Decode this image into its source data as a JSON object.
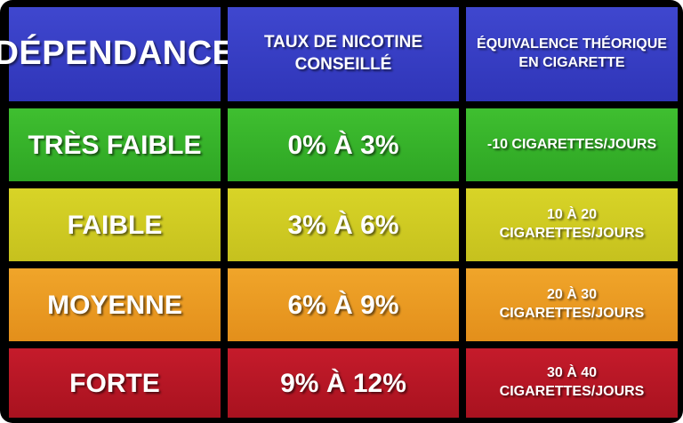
{
  "table": {
    "headers": {
      "dependance": "DÉPENDANCE",
      "taux_line1": "TAUX DE NICOTINE",
      "taux_line2": "CONSEILLÉ",
      "equiv_line1": "ÉQUIVALENCE THÉORIQUE",
      "equiv_line2": "EN CIGARETTE"
    },
    "rows": [
      {
        "level": "TRÈS FAIBLE",
        "rate": "0% À 3%",
        "equivalent": "-10 CIGARETTES/JOURS",
        "color": "#34b12a"
      },
      {
        "level": "FAIBLE",
        "rate": "3% À 6%",
        "equivalent": "10 À 20 CIGARETTES/JOURS",
        "color": "#cfcb22"
      },
      {
        "level": "MOYENNE",
        "rate": "6% À 9%",
        "equivalent": "20 À 30 CIGARETTES/JOURS",
        "color": "#e99b22"
      },
      {
        "level": "FORTE",
        "rate": "9% À 12%",
        "equivalent": "30 À 40 CIGARETTES/JOURS",
        "color": "#b71725"
      }
    ],
    "header_color": "#3840c4"
  }
}
